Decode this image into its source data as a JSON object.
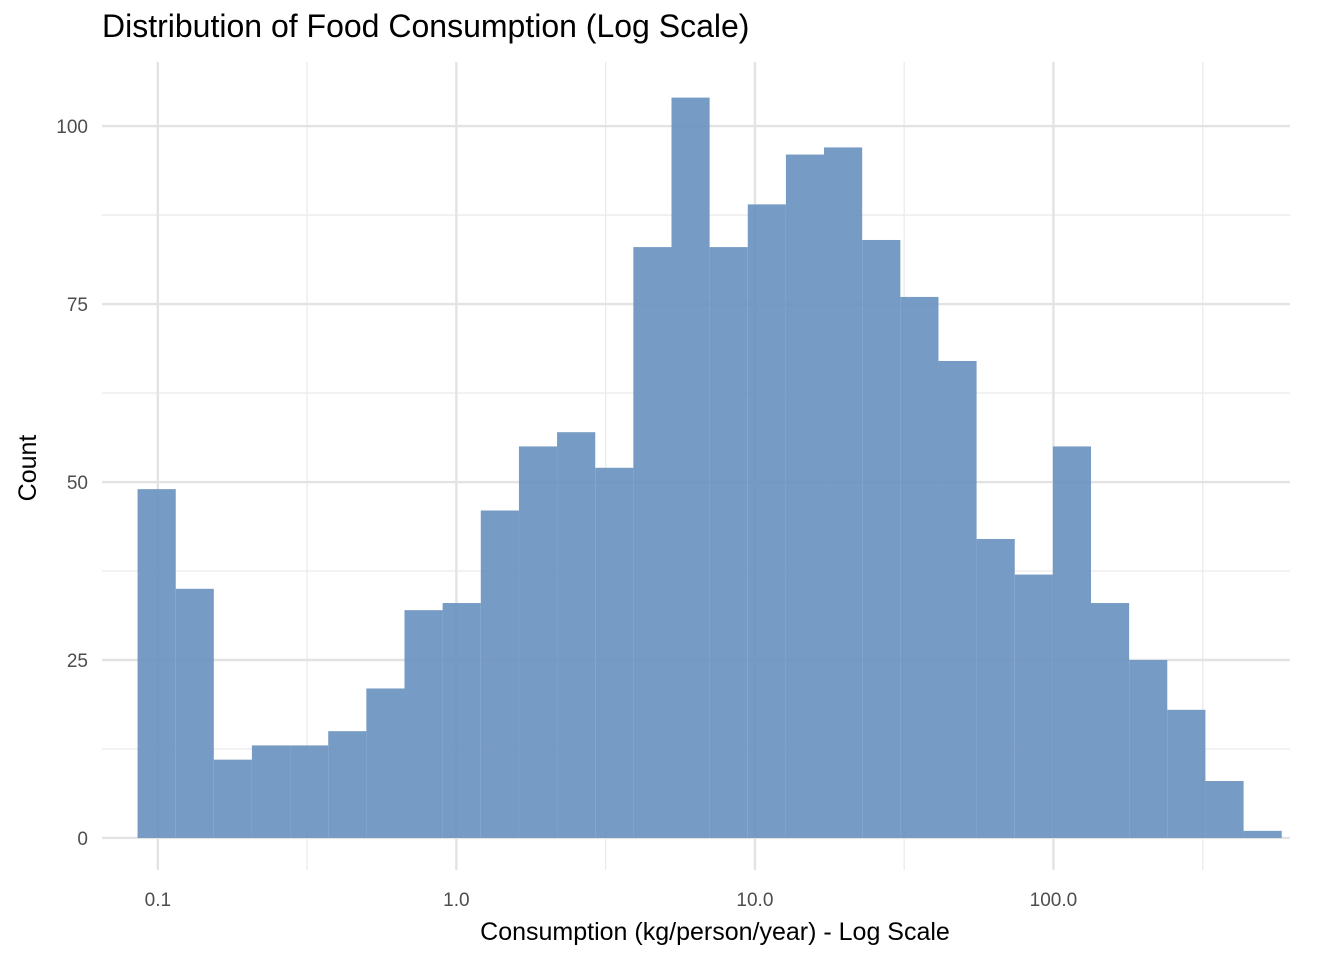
{
  "chart_data": {
    "type": "bar",
    "title": "Distribution of Food Consumption (Log Scale)",
    "xlabel": "Consumption (kg/person/year) - Log Scale",
    "ylabel": "Count",
    "x_scale": "log10",
    "xlim": [
      0.065,
      620
    ],
    "ylim": [
      -4.5,
      109
    ],
    "x_ticks": [
      {
        "value": 0.1,
        "label": "0.1"
      },
      {
        "value": 1,
        "label": "1.0"
      },
      {
        "value": 10,
        "label": "10.0"
      },
      {
        "value": 100,
        "label": "100.0"
      }
    ],
    "y_ticks": [
      {
        "value": 0,
        "label": "0"
      },
      {
        "value": 25,
        "label": "25"
      },
      {
        "value": 50,
        "label": "50"
      },
      {
        "value": 75,
        "label": "75"
      },
      {
        "value": 100,
        "label": "100"
      }
    ],
    "grid": true,
    "bar_color": "#6a93bf",
    "bins": [
      {
        "x0": 0.0855,
        "x1": 0.1148,
        "count": 49
      },
      {
        "x0": 0.1148,
        "x1": 0.154,
        "count": 35
      },
      {
        "x0": 0.154,
        "x1": 0.2066,
        "count": 11
      },
      {
        "x0": 0.2066,
        "x1": 0.2773,
        "count": 13
      },
      {
        "x0": 0.2773,
        "x1": 0.3721,
        "count": 13
      },
      {
        "x0": 0.3721,
        "x1": 0.4994,
        "count": 15
      },
      {
        "x0": 0.4994,
        "x1": 0.6702,
        "count": 21
      },
      {
        "x0": 0.6702,
        "x1": 0.8994,
        "count": 32
      },
      {
        "x0": 0.8994,
        "x1": 1.207,
        "count": 33
      },
      {
        "x0": 1.207,
        "x1": 1.62,
        "count": 46
      },
      {
        "x0": 1.62,
        "x1": 2.174,
        "count": 55
      },
      {
        "x0": 2.174,
        "x1": 2.918,
        "count": 57
      },
      {
        "x0": 2.918,
        "x1": 3.916,
        "count": 52
      },
      {
        "x0": 3.916,
        "x1": 5.255,
        "count": 83
      },
      {
        "x0": 5.255,
        "x1": 7.052,
        "count": 104
      },
      {
        "x0": 7.052,
        "x1": 9.464,
        "count": 83
      },
      {
        "x0": 9.464,
        "x1": 12.7,
        "count": 89
      },
      {
        "x0": 12.7,
        "x1": 17.04,
        "count": 96
      },
      {
        "x0": 17.04,
        "x1": 22.87,
        "count": 97
      },
      {
        "x0": 22.87,
        "x1": 30.7,
        "count": 84
      },
      {
        "x0": 30.7,
        "x1": 41.2,
        "count": 76
      },
      {
        "x0": 41.2,
        "x1": 55.28,
        "count": 67
      },
      {
        "x0": 55.28,
        "x1": 74.19,
        "count": 42
      },
      {
        "x0": 74.19,
        "x1": 99.57,
        "count": 37
      },
      {
        "x0": 99.57,
        "x1": 133.6,
        "count": 55
      },
      {
        "x0": 133.6,
        "x1": 179.3,
        "count": 33
      },
      {
        "x0": 179.3,
        "x1": 240.6,
        "count": 25
      },
      {
        "x0": 240.6,
        "x1": 322.9,
        "count": 18
      },
      {
        "x0": 322.9,
        "x1": 433.4,
        "count": 8
      },
      {
        "x0": 433.4,
        "x1": 581.6,
        "count": 1
      }
    ]
  }
}
